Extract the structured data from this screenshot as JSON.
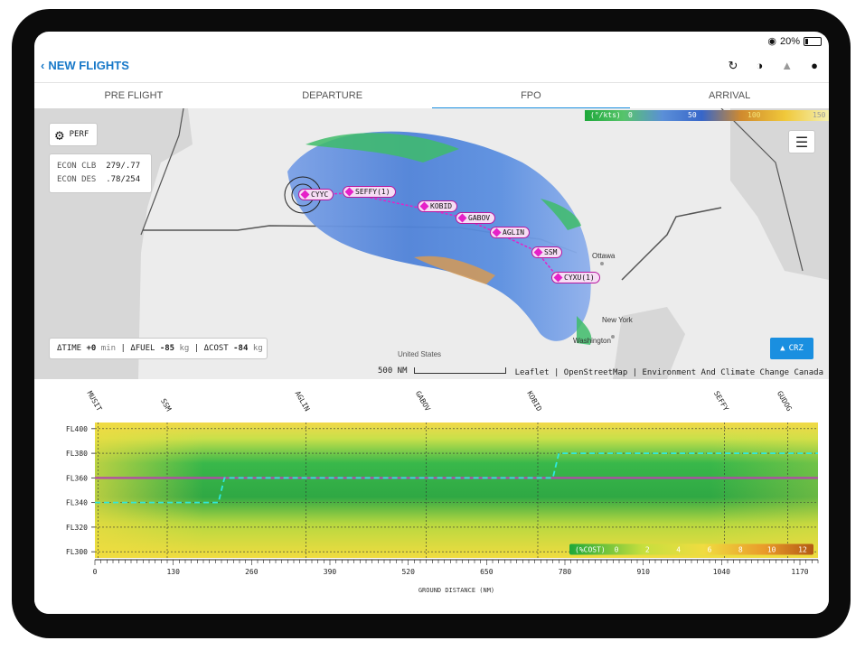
{
  "status": {
    "battery": "20%"
  },
  "nav": {
    "back_label": "NEW FLIGHTS"
  },
  "tabs": [
    {
      "label": "PRE FLIGHT",
      "active": false
    },
    {
      "label": "DEPARTURE",
      "active": false
    },
    {
      "label": "FPO",
      "active": true
    },
    {
      "label": "ARRIVAL",
      "active": false
    }
  ],
  "map": {
    "perf_button": "PERF",
    "econ_clb_label": "ECON CLB",
    "econ_clb_value": "279/.77",
    "econ_des_label": "ECON DES",
    "econ_des_value": ".78/254",
    "wind_legend": {
      "label": "(°/kts)",
      "ticks": [
        "0",
        "50",
        "100",
        "150"
      ]
    },
    "waypoints": [
      "CYYC",
      "SEFFY(1)",
      "KOBID",
      "GABOV",
      "AGLIN",
      "SSM",
      "CYXU(1)"
    ],
    "cities": [
      "Ottawa",
      "New York",
      "Washington",
      "United States"
    ],
    "delta": {
      "time_label": "ΔTIME",
      "time_value": "+0",
      "time_unit": "min",
      "fuel_label": "ΔFUEL",
      "fuel_value": "-85",
      "fuel_unit": "kg",
      "cost_label": "ΔCOST",
      "cost_value": "-84",
      "cost_unit": "kg"
    },
    "scale_label": "500 NM",
    "attribution": "Leaflet | OpenStreetMap | Environment And Climate Change Canada",
    "crz_button": "CRZ"
  },
  "chart_data": {
    "type": "heatmap",
    "xlabel": "GROUND DISTANCE (NM)",
    "xlim": [
      0,
      1200
    ],
    "x_ticks": [
      0,
      130,
      260,
      390,
      520,
      650,
      780,
      910,
      1040,
      1170
    ],
    "y_ticks": [
      "FL400",
      "FL380",
      "FL360",
      "FL340",
      "FL320",
      "FL300"
    ],
    "ylim": [
      295,
      405
    ],
    "waypoints": [
      {
        "name": "MUSIT",
        "x": 5
      },
      {
        "name": "SSM",
        "x": 120
      },
      {
        "name": "AGLIN",
        "x": 350
      },
      {
        "name": "GABOV",
        "x": 550
      },
      {
        "name": "KOBID",
        "x": 735
      },
      {
        "name": "SEFFY",
        "x": 1045
      },
      {
        "name": "GUDOG",
        "x": 1150
      }
    ],
    "optimized_profile": {
      "x": [
        0,
        205,
        215,
        760,
        770,
        1200
      ],
      "y": [
        340,
        340,
        360,
        360,
        380,
        380
      ]
    },
    "planned_profile": {
      "x": [
        0,
        1200
      ],
      "y": [
        360,
        360
      ]
    },
    "cost_legend": {
      "label": "(%COST)",
      "ticks": [
        "0",
        "2",
        "4",
        "6",
        "8",
        "10",
        "12"
      ]
    },
    "colors": {
      "optimized": "#2ee8e0",
      "planned": "#b34aa8"
    }
  }
}
